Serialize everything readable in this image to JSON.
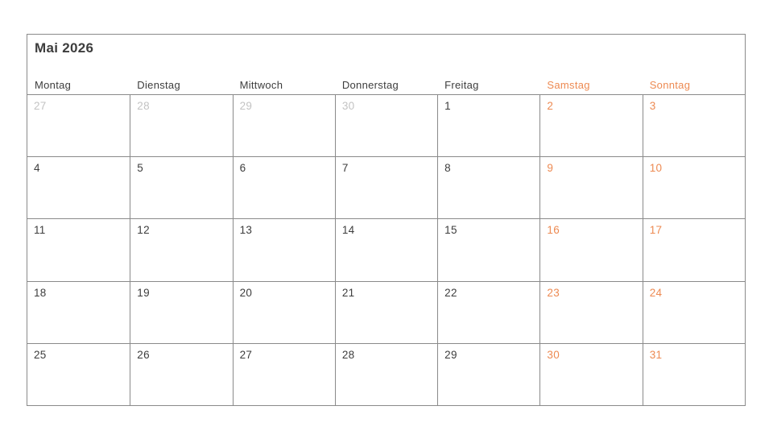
{
  "calendar": {
    "title": "Mai 2026",
    "weekdays": [
      {
        "label": "Montag",
        "weekend": false
      },
      {
        "label": "Dienstag",
        "weekend": false
      },
      {
        "label": "Mittwoch",
        "weekend": false
      },
      {
        "label": "Donnerstag",
        "weekend": false
      },
      {
        "label": "Freitag",
        "weekend": false
      },
      {
        "label": "Samstag",
        "weekend": true
      },
      {
        "label": "Sonntag",
        "weekend": true
      }
    ],
    "weeks": [
      [
        {
          "n": "27",
          "muted": true,
          "weekend": false
        },
        {
          "n": "28",
          "muted": true,
          "weekend": false
        },
        {
          "n": "29",
          "muted": true,
          "weekend": false
        },
        {
          "n": "30",
          "muted": true,
          "weekend": false
        },
        {
          "n": "1",
          "muted": false,
          "weekend": false
        },
        {
          "n": "2",
          "muted": false,
          "weekend": true
        },
        {
          "n": "3",
          "muted": false,
          "weekend": true
        }
      ],
      [
        {
          "n": "4",
          "muted": false,
          "weekend": false
        },
        {
          "n": "5",
          "muted": false,
          "weekend": false
        },
        {
          "n": "6",
          "muted": false,
          "weekend": false
        },
        {
          "n": "7",
          "muted": false,
          "weekend": false
        },
        {
          "n": "8",
          "muted": false,
          "weekend": false
        },
        {
          "n": "9",
          "muted": false,
          "weekend": true
        },
        {
          "n": "10",
          "muted": false,
          "weekend": true
        }
      ],
      [
        {
          "n": "11",
          "muted": false,
          "weekend": false
        },
        {
          "n": "12",
          "muted": false,
          "weekend": false
        },
        {
          "n": "13",
          "muted": false,
          "weekend": false
        },
        {
          "n": "14",
          "muted": false,
          "weekend": false
        },
        {
          "n": "15",
          "muted": false,
          "weekend": false
        },
        {
          "n": "16",
          "muted": false,
          "weekend": true
        },
        {
          "n": "17",
          "muted": false,
          "weekend": true
        }
      ],
      [
        {
          "n": "18",
          "muted": false,
          "weekend": false
        },
        {
          "n": "19",
          "muted": false,
          "weekend": false
        },
        {
          "n": "20",
          "muted": false,
          "weekend": false
        },
        {
          "n": "21",
          "muted": false,
          "weekend": false
        },
        {
          "n": "22",
          "muted": false,
          "weekend": false
        },
        {
          "n": "23",
          "muted": false,
          "weekend": true
        },
        {
          "n": "24",
          "muted": false,
          "weekend": true
        }
      ],
      [
        {
          "n": "25",
          "muted": false,
          "weekend": false
        },
        {
          "n": "26",
          "muted": false,
          "weekend": false
        },
        {
          "n": "27",
          "muted": false,
          "weekend": false
        },
        {
          "n": "28",
          "muted": false,
          "weekend": false
        },
        {
          "n": "29",
          "muted": false,
          "weekend": false
        },
        {
          "n": "30",
          "muted": false,
          "weekend": true
        },
        {
          "n": "31",
          "muted": false,
          "weekend": true
        }
      ]
    ],
    "colors": {
      "accent": "#ED8A52",
      "text": "#3D3D3D",
      "muted": "#C3C3C3",
      "grid": "#8A8A8A"
    }
  }
}
